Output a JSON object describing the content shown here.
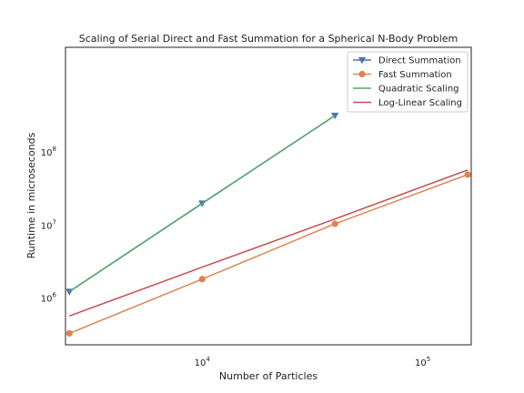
{
  "chart_data": {
    "type": "line",
    "title": "Scaling of Serial Direct and Fast Summation for a Spherical N-Body Problem",
    "xlabel": "Number of Particles",
    "ylabel": "Runtime in microseconds",
    "x_scale": "log",
    "y_scale": "log",
    "xlim": [
      2400,
      166000
    ],
    "ylim": [
      230000,
      2700000000
    ],
    "x_ticks": [
      {
        "base": "10",
        "exp": "4",
        "value": 10000
      },
      {
        "base": "10",
        "exp": "5",
        "value": 100000
      }
    ],
    "y_ticks": [
      {
        "base": "10",
        "exp": "6",
        "value": 1000000
      },
      {
        "base": "10",
        "exp": "7",
        "value": 10000000
      },
      {
        "base": "10",
        "exp": "8",
        "value": 100000000
      }
    ],
    "grid": false,
    "legend_position": "top-right",
    "series": [
      {
        "name": "Direct Summation",
        "color": "#4c72b0",
        "marker": "triangle-down",
        "x": [
          2500,
          10000,
          40000
        ],
        "y": [
          1230000,
          19800000,
          315000000
        ]
      },
      {
        "name": "Fast Summation",
        "color": "#dd8452",
        "marker": "circle",
        "x": [
          2500,
          10000,
          40000,
          160000
        ],
        "y": [
          330000,
          1820000,
          10400000,
          49000000
        ]
      },
      {
        "name": "Quadratic Scaling",
        "color": "#55a868",
        "marker": "none",
        "x": [
          2500,
          10000,
          40000
        ],
        "y": [
          1230000,
          19700000,
          315000000
        ]
      },
      {
        "name": "Log-Linear Scaling",
        "color": "#c44e52",
        "marker": "none",
        "x": [
          2500,
          10000,
          40000,
          160000
        ],
        "y": [
          570000,
          2650000,
          12100000,
          56800000
        ]
      }
    ]
  }
}
